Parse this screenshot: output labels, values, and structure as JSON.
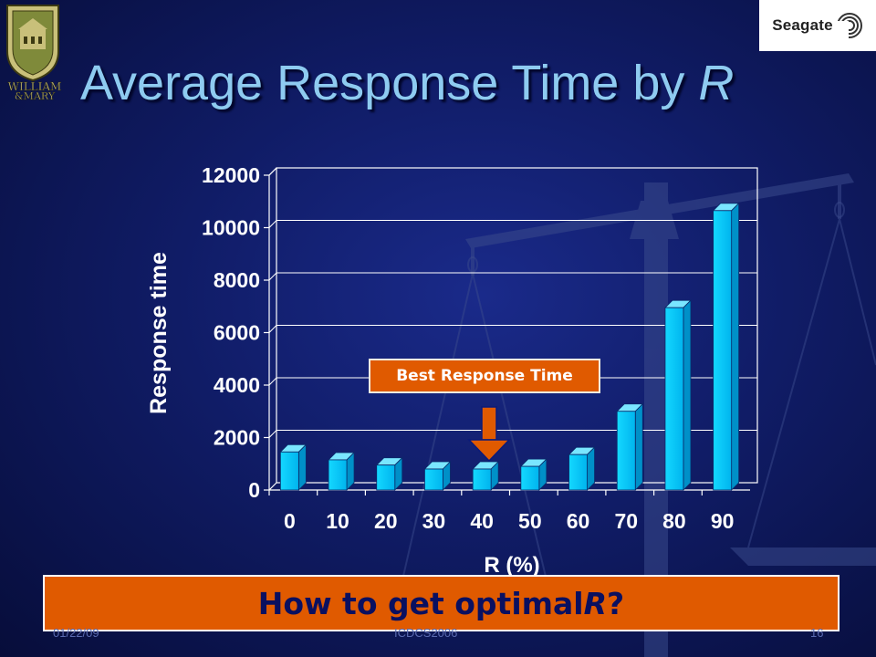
{
  "slide": {
    "title_main": "Average Response Time by ",
    "title_var": "R",
    "logo_text": "Seagate",
    "crest_lines": [
      "WILLIAM",
      "&MARY"
    ],
    "callout": "Best Response Time",
    "banner_main": "How to get optimal ",
    "banner_var": "R",
    "banner_end": " ?",
    "footer_date": "01/22/09",
    "footer_conf": "ICDCS2006",
    "footer_page": "16"
  },
  "chart_data": {
    "type": "bar",
    "categories": [
      "0",
      "10",
      "20",
      "30",
      "40",
      "50",
      "60",
      "70",
      "80",
      "90"
    ],
    "values": [
      1450,
      1150,
      950,
      800,
      800,
      900,
      1350,
      3000,
      6950,
      10650
    ],
    "yticks": [
      "0",
      "2000",
      "4000",
      "6000",
      "8000",
      "10000",
      "12000"
    ],
    "ylim": [
      0,
      12000
    ],
    "xlabel": "R (%)",
    "ylabel": "Response time",
    "grid": true,
    "bar_color": "#00c8ff",
    "highlight_category": "40"
  }
}
